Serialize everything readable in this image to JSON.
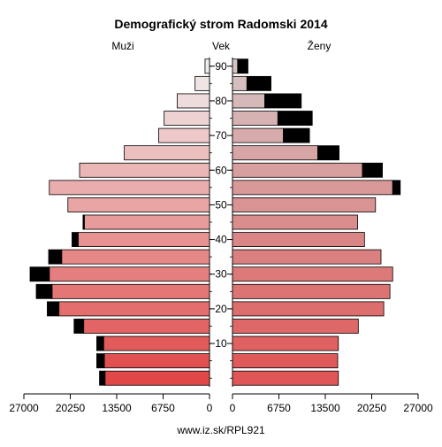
{
  "chart_data": {
    "type": "bar",
    "title": "Demografický strom Radomski 2014",
    "left_label": "Muži",
    "center_label": "Vek",
    "right_label": "Ženy",
    "footer": "www.iz.sk/RPL921",
    "age_groups": [
      "0-4",
      "5-9",
      "10-14",
      "15-19",
      "20-24",
      "25-29",
      "30-34",
      "35-39",
      "40-44",
      "45-49",
      "50-54",
      "55-59",
      "60-64",
      "65-69",
      "70-74",
      "75-79",
      "80-84",
      "85-89",
      "90+"
    ],
    "age_ticks": [
      {
        "age": 10,
        "label": "10"
      },
      {
        "age": 20,
        "label": "20"
      },
      {
        "age": 30,
        "label": "30"
      },
      {
        "age": 40,
        "label": "40"
      },
      {
        "age": 50,
        "label": "50"
      },
      {
        "age": 60,
        "label": "60"
      },
      {
        "age": 70,
        "label": "70"
      },
      {
        "age": 80,
        "label": "80"
      },
      {
        "age": 90,
        "label": "90"
      }
    ],
    "x_ticks_left": [
      {
        "value": 27000,
        "label": "27000"
      },
      {
        "value": 20250,
        "label": "20250"
      },
      {
        "value": 13500,
        "label": "13500"
      },
      {
        "value": 6750,
        "label": "6750"
      },
      {
        "value": 0,
        "label": "0"
      }
    ],
    "x_ticks_right": [
      {
        "value": 0,
        "label": "0"
      },
      {
        "value": 6750,
        "label": "6750"
      },
      {
        "value": 13500,
        "label": "13500"
      },
      {
        "value": 20250,
        "label": "20250"
      },
      {
        "value": 27000,
        "label": "27000"
      }
    ],
    "xlim": [
      0,
      27000
    ],
    "series": [
      {
        "name": "Muži",
        "side": "left",
        "values": [
          15200,
          15300,
          15400,
          18300,
          21900,
          22900,
          23300,
          21500,
          19100,
          18200,
          20600,
          23300,
          18900,
          12400,
          7400,
          6600,
          4700,
          2100,
          650
        ],
        "excess": [
          800,
          1100,
          1000,
          1400,
          1700,
          2300,
          2800,
          1900,
          900,
          200,
          0,
          0,
          0,
          0,
          0,
          0,
          0,
          0,
          0
        ]
      },
      {
        "name": "Ženy",
        "side": "right",
        "values": [
          15400,
          15300,
          15400,
          18300,
          22000,
          22900,
          23300,
          21600,
          19200,
          18200,
          20800,
          23300,
          18900,
          12400,
          7400,
          6600,
          4700,
          2100,
          750
        ],
        "excess": [
          0,
          0,
          0,
          0,
          0,
          0,
          0,
          0,
          0,
          0,
          0,
          1100,
          2900,
          3100,
          3800,
          5000,
          5300,
          3500,
          1500
        ]
      }
    ],
    "colors": {
      "excess": "#000000",
      "outline": "#000000",
      "male_young": "#e04848",
      "male_old": "#f0eded",
      "female_young": "#e05555",
      "female_old": "#d4c4c4"
    }
  }
}
